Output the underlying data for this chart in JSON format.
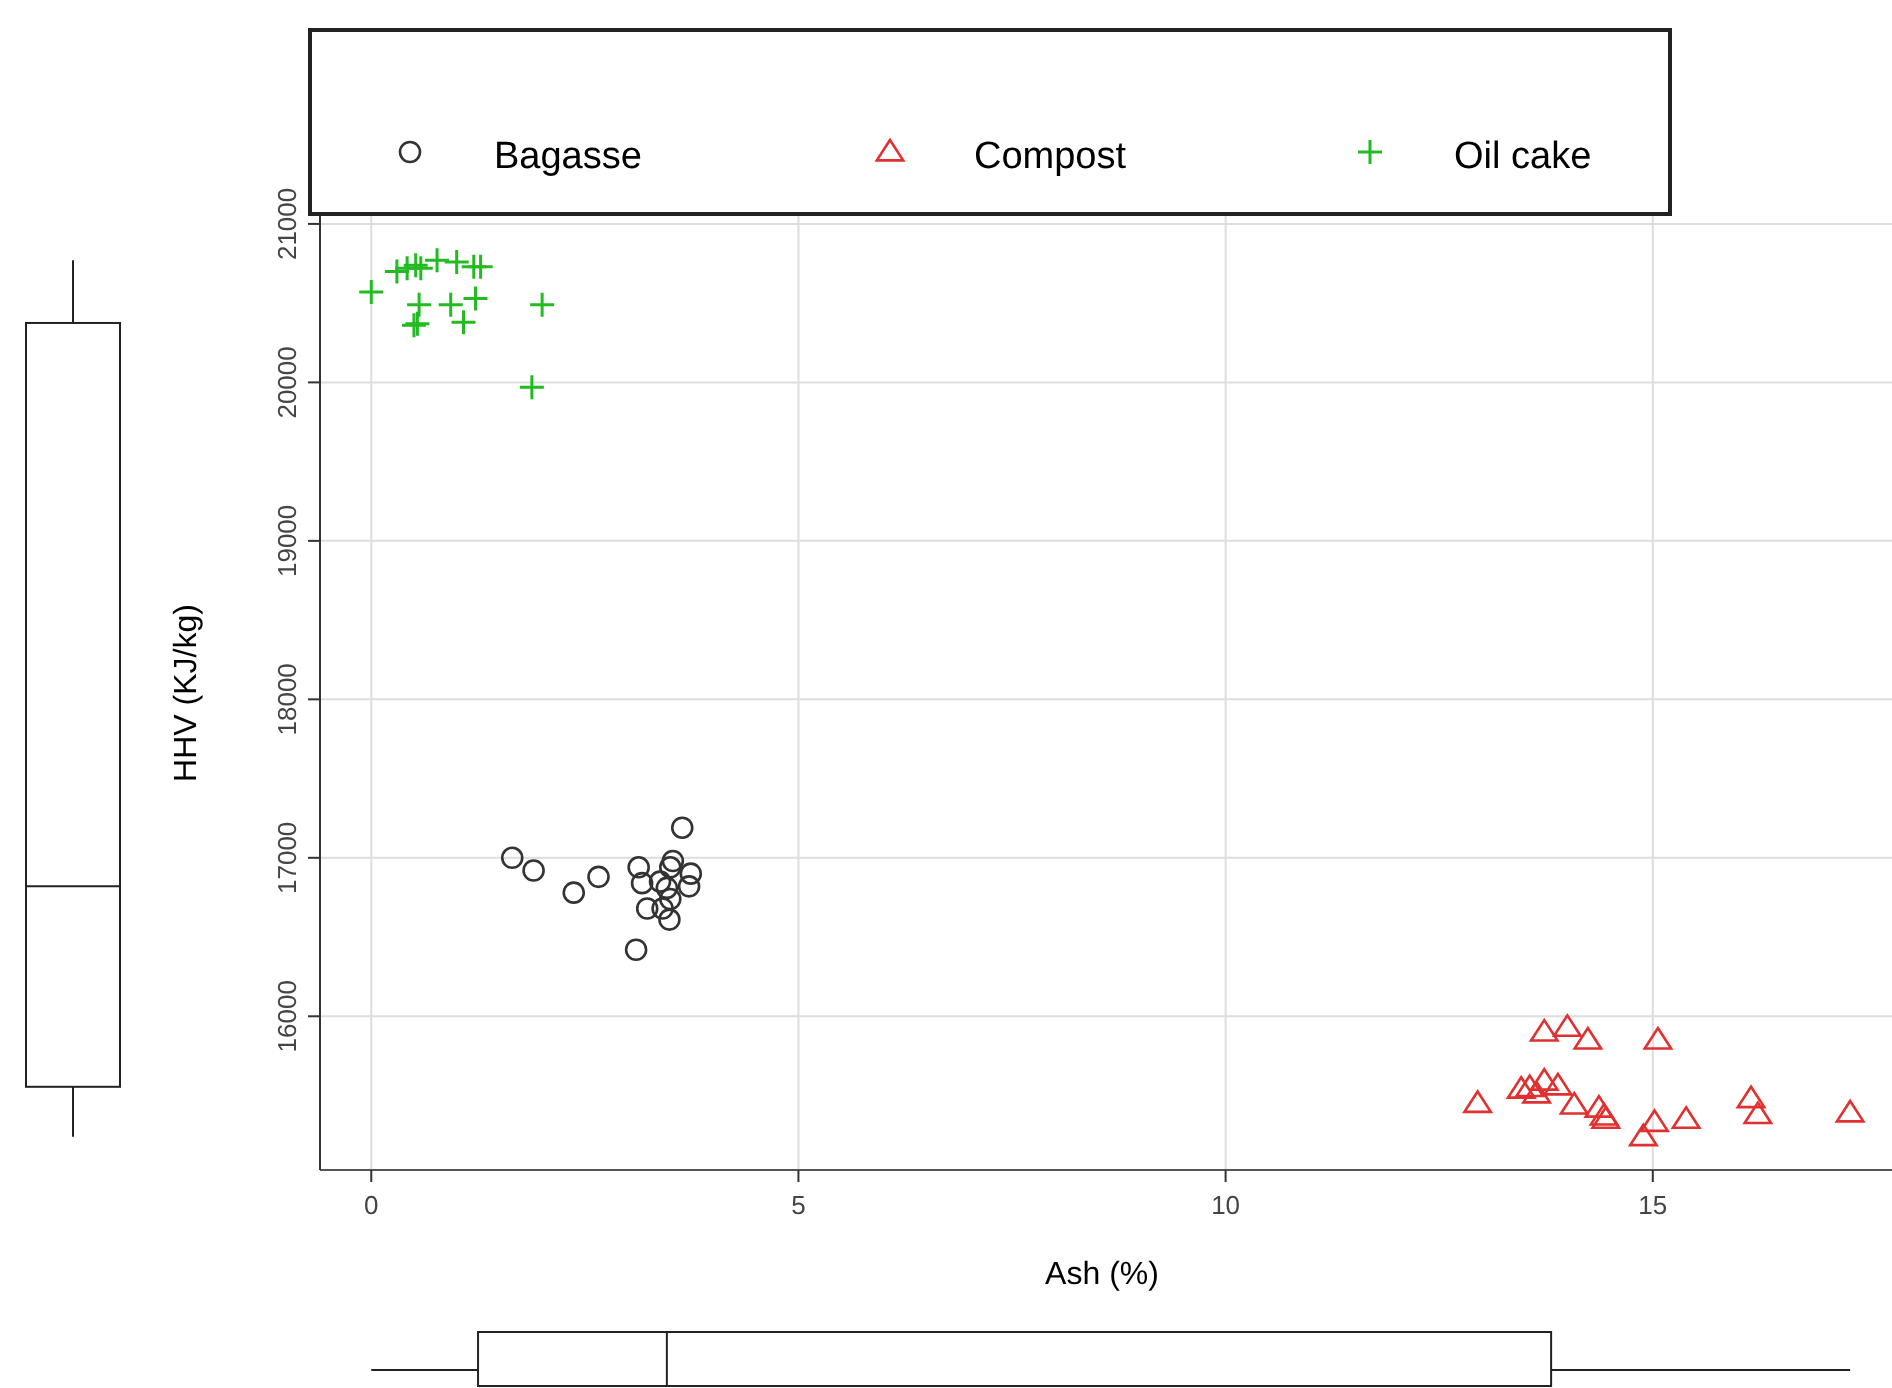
{
  "chart_data": {
    "type": "scatter",
    "xlabel": "Ash (%)",
    "ylabel": "HHV (KJ/kg)",
    "xlim": [
      -0.6,
      17.8
    ],
    "ylim": [
      15030,
      21050
    ],
    "xticks": [
      0,
      5,
      10,
      15
    ],
    "yticks": [
      16000,
      17000,
      18000,
      19000,
      20000,
      21000
    ],
    "grid": true,
    "legend": "top",
    "series": [
      {
        "name": "Bagasse",
        "color": "#333333",
        "marker": "circle",
        "x": [
          3.64,
          1.65,
          1.9,
          2.37,
          2.66,
          3.13,
          3.17,
          3.53,
          3.5,
          3.38,
          3.46,
          3.74,
          3.72,
          3.5,
          3.23,
          3.41,
          3.49,
          3.1
        ],
        "values": [
          17190,
          17000,
          16920,
          16780,
          16880,
          16940,
          16840,
          16980,
          16940,
          16850,
          16810,
          16900,
          16820,
          16740,
          16680,
          16680,
          16610,
          16420
        ]
      },
      {
        "name": "Compost",
        "color": "#e03030",
        "marker": "triangle",
        "x": [
          13.73,
          14.0,
          14.24,
          15.06,
          12.95,
          13.46,
          13.56,
          13.73,
          13.64,
          13.89,
          14.08,
          14.37,
          14.43,
          14.45,
          15.02,
          14.89,
          15.39,
          16.15,
          16.23,
          17.31
        ],
        "values": [
          15900,
          15930,
          15850,
          15850,
          15450,
          15540,
          15550,
          15590,
          15510,
          15560,
          15440,
          15420,
          15370,
          15350,
          15330,
          15240,
          15350,
          15480,
          15380,
          15390
        ]
      },
      {
        "name": "Oil cake",
        "color": "#22bb22",
        "marker": "cross",
        "x": [
          0.0,
          0.3,
          0.42,
          0.52,
          0.58,
          0.77,
          1.0,
          1.2,
          1.28,
          0.56,
          0.54,
          0.5,
          0.93,
          1.08,
          1.22,
          2.0,
          1.88
        ],
        "values": [
          20570,
          20700,
          20720,
          20740,
          20720,
          20770,
          20760,
          20730,
          20730,
          20490,
          20370,
          20360,
          20490,
          20380,
          20530,
          20490,
          19970
        ]
      }
    ]
  }
}
